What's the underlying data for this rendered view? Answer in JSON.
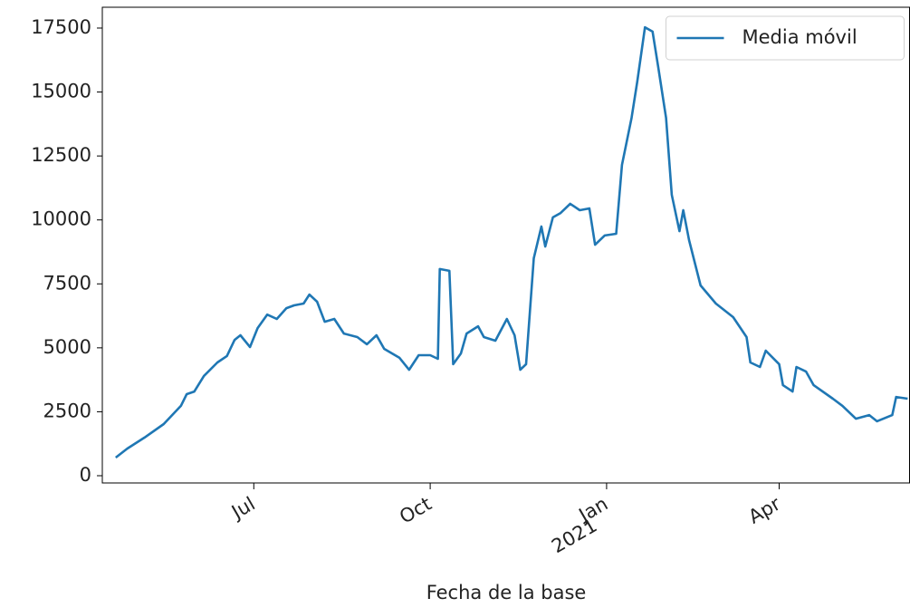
{
  "chart_data": {
    "type": "line",
    "xlabel": "Fecha de la base",
    "legend": "upper right",
    "x": [
      -72,
      -66,
      -57,
      -47,
      -38,
      -35,
      -31,
      -26,
      -19,
      -14,
      -10,
      -7,
      -2,
      2,
      7,
      12,
      17,
      21,
      26,
      29,
      33,
      37,
      42,
      47,
      54,
      59,
      64,
      68,
      76,
      81,
      86,
      92,
      96,
      97,
      102,
      104,
      108,
      111,
      117,
      120,
      126,
      132,
      136,
      139,
      142,
      146,
      150,
      152,
      156,
      160,
      165,
      170,
      175,
      178,
      183,
      189,
      192,
      197,
      200,
      204,
      208,
      211,
      215,
      218,
      222,
      224,
      227,
      233,
      241,
      250,
      257,
      259,
      264,
      267,
      274,
      276,
      281,
      283,
      288,
      292,
      302,
      307,
      314,
      321,
      325,
      333,
      335,
      341
    ],
    "series": [
      {
        "name": "Media móvil",
        "color": "#1f77b4",
        "values": [
          708,
          1060,
          1490,
          2020,
          2730,
          3190,
          3290,
          3900,
          4430,
          4680,
          5310,
          5490,
          5030,
          5770,
          6300,
          6130,
          6550,
          6660,
          6730,
          7080,
          6800,
          6020,
          6130,
          5560,
          5420,
          5140,
          5490,
          4960,
          4610,
          4140,
          4710,
          4710,
          4570,
          8080,
          8010,
          4360,
          4780,
          5560,
          5840,
          5420,
          5280,
          6130,
          5490,
          4140,
          4360,
          8500,
          9740,
          8960,
          10100,
          10270,
          10630,
          10380,
          10450,
          9030,
          9390,
          9460,
          12150,
          13990,
          15410,
          17530,
          17360,
          15940,
          13990,
          10980,
          9560,
          10380,
          9210,
          7440,
          6730,
          6200,
          5420,
          4430,
          4250,
          4890,
          4360,
          3540,
          3290,
          4250,
          4070,
          3540,
          3010,
          2730,
          2230,
          2370,
          2130,
          2370,
          3080,
          3010
        ]
      }
    ],
    "xlim": [
      -79,
      342
    ],
    "xticks": [
      {
        "value": 0,
        "label": "Jul"
      },
      {
        "value": 92,
        "label": "Oct"
      },
      {
        "value": 184,
        "label": "Jan",
        "year": "2021"
      },
      {
        "value": 274,
        "label": "Apr"
      }
    ],
    "ylim": [
      -283,
      18314
    ],
    "yticks": [
      0,
      2500,
      5000,
      7500,
      10000,
      12500,
      15000,
      17500
    ]
  }
}
